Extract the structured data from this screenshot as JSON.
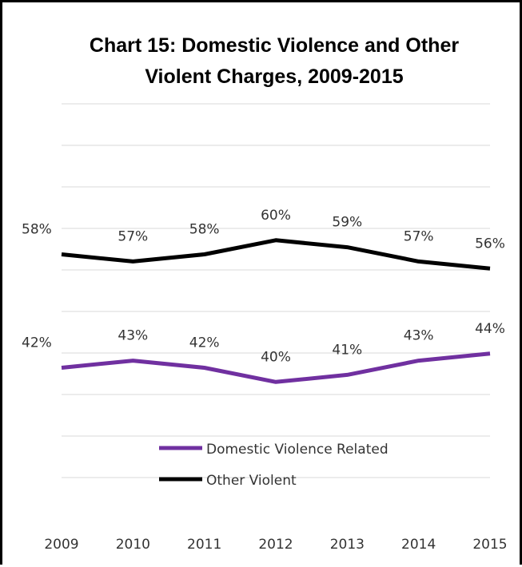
{
  "chart_data": {
    "type": "line",
    "title_line1": "Chart 15: Domestic Violence and Other",
    "title_line2": "Violent Charges, 2009-2015",
    "categories": [
      "2009",
      "2010",
      "2011",
      "2012",
      "2013",
      "2014",
      "2015"
    ],
    "ylim": [
      0,
      1
    ],
    "grid": true,
    "legend_position": "bottom-center",
    "series": [
      {
        "name": "Domestic Violence Related",
        "color": "#7030a0",
        "values": [
          42,
          43,
          42,
          40,
          41,
          43,
          44
        ],
        "labels": [
          "42%",
          "43%",
          "42%",
          "40%",
          "41%",
          "43%",
          "44%"
        ]
      },
      {
        "name": "Other Violent",
        "color": "#000000",
        "values": [
          58,
          57,
          58,
          60,
          59,
          57,
          56
        ],
        "labels": [
          "58%",
          "57%",
          "58%",
          "60%",
          "59%",
          "57%",
          "56%"
        ]
      }
    ]
  }
}
